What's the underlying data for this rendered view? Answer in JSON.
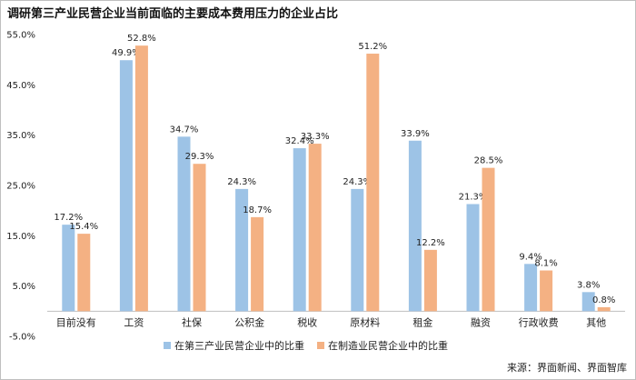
{
  "title": "调研第三产业民营企业当前面临的主要成本费用压力的企业占比",
  "source": "来源：界面新闻、界面智库",
  "chart_data": {
    "type": "bar",
    "categories": [
      "目前没有",
      "工资",
      "社保",
      "公积金",
      "税收",
      "原材料",
      "租金",
      "融资",
      "行政收费",
      "其他"
    ],
    "series": [
      {
        "name": "在第三产业民营企业中的比重",
        "color": "#9dc3e6",
        "values": [
          17.2,
          49.9,
          34.7,
          24.3,
          32.4,
          24.3,
          33.9,
          21.3,
          9.4,
          3.8
        ],
        "labels": [
          "17.2%",
          "49.9%",
          "34.7%",
          "24.3%",
          "32.4%",
          "24.3%",
          "33.9%",
          "21.3%",
          "9.4%",
          "3.8%"
        ]
      },
      {
        "name": "在制造业民营企业中的比重",
        "color": "#f4b183",
        "values": [
          15.4,
          52.8,
          29.3,
          18.7,
          33.3,
          51.2,
          12.2,
          28.5,
          8.1,
          0.8
        ],
        "labels": [
          "15.4%",
          "52.8%",
          "29.3%",
          "18.7%",
          "33.3%",
          "51.2%",
          "12.2%",
          "28.5%",
          "8.1%",
          "0.8%"
        ]
      }
    ],
    "y_ticks": [
      55,
      45,
      35,
      25,
      15,
      5,
      -5
    ],
    "y_tick_labels": [
      "55.0%",
      "45.0%",
      "35.0%",
      "25.0%",
      "15.0%",
      "5.0%",
      "-5.0%"
    ],
    "ylim": [
      -5,
      55
    ],
    "grid": false,
    "legend_position": "bottom"
  }
}
